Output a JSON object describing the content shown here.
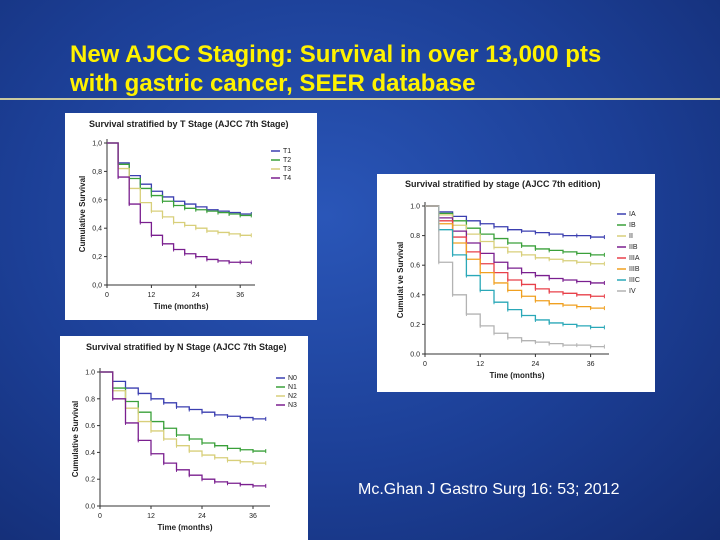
{
  "slide": {
    "title_line1": "New AJCC Staging:  Survival in over 13,000 pts",
    "title_line2": "with gastric cancer, SEER database",
    "citation": "Mc.Ghan J Gastro Surg 16: 53; 2012",
    "title_color": "#fff200",
    "background_color": "#1c3f96"
  },
  "chart_data": [
    {
      "type": "line",
      "title": "Survival stratified by T Stage (AJCC 7th Stage)",
      "xlabel": "Time (months)",
      "ylabel": "Cumulative Survival",
      "xlim": [
        0,
        40
      ],
      "ylim": [
        0,
        1
      ],
      "xticks": [
        "0",
        "12",
        "24",
        "36"
      ],
      "yticks": [
        "0,0",
        "0,2",
        "0,4",
        "0,6",
        "0,8",
        "1,0"
      ],
      "x": [
        0,
        3,
        6,
        9,
        12,
        15,
        18,
        21,
        24,
        27,
        30,
        33,
        36,
        39
      ],
      "series": [
        {
          "name": "T1",
          "color": "#3b3fb0",
          "values": [
            1.0,
            0.86,
            0.77,
            0.71,
            0.66,
            0.62,
            0.59,
            0.57,
            0.55,
            0.53,
            0.52,
            0.51,
            0.5,
            0.5
          ]
        },
        {
          "name": "T2",
          "color": "#3aa03a",
          "values": [
            1.0,
            0.85,
            0.75,
            0.68,
            0.63,
            0.59,
            0.56,
            0.54,
            0.53,
            0.52,
            0.51,
            0.5,
            0.49,
            0.49
          ]
        },
        {
          "name": "T3",
          "color": "#d8cf7a",
          "values": [
            1.0,
            0.82,
            0.68,
            0.58,
            0.52,
            0.48,
            0.44,
            0.42,
            0.4,
            0.38,
            0.37,
            0.36,
            0.35,
            0.35
          ]
        },
        {
          "name": "T4",
          "color": "#7a1f8f",
          "values": [
            1.0,
            0.76,
            0.57,
            0.44,
            0.35,
            0.29,
            0.25,
            0.22,
            0.2,
            0.18,
            0.17,
            0.16,
            0.16,
            0.16
          ]
        }
      ],
      "legend_position": "top-right",
      "grid": false
    },
    {
      "type": "line",
      "title": "Survival stratified by N Stage (AJCC 7th Stage)",
      "xlabel": "Time (months)",
      "ylabel": "Cumulative Survival",
      "xlim": [
        0,
        40
      ],
      "ylim": [
        0,
        1
      ],
      "xticks": [
        "0",
        "12",
        "24",
        "36"
      ],
      "yticks": [
        "0.0",
        "0.2",
        "0.4",
        "0.6",
        "0.8",
        "1.0"
      ],
      "x": [
        0,
        3,
        6,
        9,
        12,
        15,
        18,
        21,
        24,
        27,
        30,
        33,
        36,
        39
      ],
      "series": [
        {
          "name": "N0",
          "color": "#3b3fb0",
          "values": [
            1.0,
            0.93,
            0.88,
            0.84,
            0.8,
            0.77,
            0.74,
            0.72,
            0.7,
            0.68,
            0.67,
            0.66,
            0.65,
            0.65
          ]
        },
        {
          "name": "N1",
          "color": "#3aa03a",
          "values": [
            1.0,
            0.88,
            0.78,
            0.7,
            0.63,
            0.58,
            0.53,
            0.5,
            0.47,
            0.45,
            0.43,
            0.42,
            0.41,
            0.41
          ]
        },
        {
          "name": "N2",
          "color": "#d8cf7a",
          "values": [
            1.0,
            0.86,
            0.73,
            0.63,
            0.56,
            0.5,
            0.45,
            0.41,
            0.38,
            0.36,
            0.34,
            0.33,
            0.32,
            0.32
          ]
        },
        {
          "name": "N3",
          "color": "#7a1f8f",
          "values": [
            1.0,
            0.8,
            0.62,
            0.49,
            0.39,
            0.32,
            0.27,
            0.23,
            0.2,
            0.18,
            0.17,
            0.16,
            0.15,
            0.15
          ]
        }
      ],
      "legend_position": "top-right",
      "grid": false
    },
    {
      "type": "line",
      "title": "Survival stratified by stage (AJCC 7th edition)",
      "xlabel": "Time (months)",
      "ylabel": "Cumulat ve Survival",
      "xlim": [
        0,
        40
      ],
      "ylim": [
        0,
        1
      ],
      "xticks": [
        "0",
        "12",
        "24",
        "36"
      ],
      "yticks": [
        "0.0",
        "0.2",
        "0.4",
        "0.6",
        "0.8",
        "1.0"
      ],
      "x": [
        0,
        3,
        6,
        9,
        12,
        15,
        18,
        21,
        24,
        27,
        30,
        33,
        36,
        39
      ],
      "series": [
        {
          "name": "IA",
          "color": "#3b3fb0",
          "values": [
            1.0,
            0.96,
            0.93,
            0.9,
            0.88,
            0.86,
            0.84,
            0.83,
            0.82,
            0.81,
            0.8,
            0.8,
            0.79,
            0.79
          ]
        },
        {
          "name": "IB",
          "color": "#3aa03a",
          "values": [
            1.0,
            0.95,
            0.9,
            0.85,
            0.81,
            0.78,
            0.75,
            0.73,
            0.71,
            0.7,
            0.69,
            0.68,
            0.67,
            0.67
          ]
        },
        {
          "name": "II",
          "color": "#d8cf7a",
          "values": [
            1.0,
            0.94,
            0.87,
            0.81,
            0.76,
            0.72,
            0.69,
            0.67,
            0.65,
            0.64,
            0.63,
            0.62,
            0.61,
            0.61
          ]
        },
        {
          "name": "IIB",
          "color": "#7a1f8f",
          "values": [
            1.0,
            0.92,
            0.83,
            0.75,
            0.68,
            0.62,
            0.58,
            0.55,
            0.53,
            0.51,
            0.5,
            0.49,
            0.48,
            0.48
          ]
        },
        {
          "name": "IIIA",
          "color": "#e8414a",
          "values": [
            1.0,
            0.9,
            0.79,
            0.69,
            0.61,
            0.55,
            0.5,
            0.47,
            0.44,
            0.42,
            0.41,
            0.4,
            0.39,
            0.39
          ]
        },
        {
          "name": "IIIB",
          "color": "#f0a020",
          "values": [
            1.0,
            0.88,
            0.75,
            0.64,
            0.55,
            0.48,
            0.43,
            0.39,
            0.36,
            0.34,
            0.33,
            0.32,
            0.31,
            0.31
          ]
        },
        {
          "name": "IIIC",
          "color": "#2aa8b8",
          "values": [
            1.0,
            0.84,
            0.67,
            0.53,
            0.43,
            0.35,
            0.3,
            0.26,
            0.23,
            0.21,
            0.2,
            0.19,
            0.18,
            0.18
          ]
        },
        {
          "name": "IV",
          "color": "#b3b3b3",
          "values": [
            1.0,
            0.62,
            0.4,
            0.27,
            0.19,
            0.14,
            0.11,
            0.09,
            0.08,
            0.07,
            0.06,
            0.06,
            0.05,
            0.05
          ]
        }
      ],
      "legend_position": "right",
      "grid": false
    }
  ]
}
